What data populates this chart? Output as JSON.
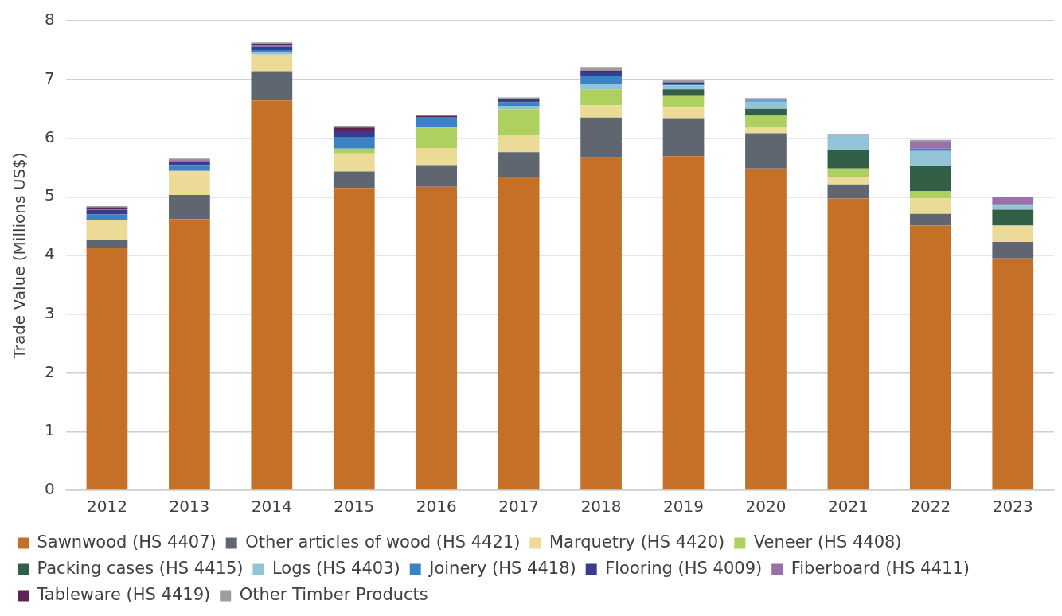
{
  "chart_data": {
    "type": "bar",
    "stacked": true,
    "ylabel": "Trade Value (Millions US$)",
    "categories": [
      "2012",
      "2013",
      "2014",
      "2015",
      "2016",
      "2017",
      "2018",
      "2019",
      "2020",
      "2021",
      "2022",
      "2023"
    ],
    "ylim": [
      0,
      8
    ],
    "yticks": [
      0,
      1,
      2,
      3,
      4,
      5,
      6,
      7,
      8
    ],
    "grid": "y",
    "legend": "bottom",
    "series": [
      {
        "name": "Sawnwood (HS 4407)",
        "color": "#c47127",
        "values": [
          4.13,
          4.62,
          6.64,
          5.15,
          5.17,
          5.33,
          5.67,
          5.69,
          5.48,
          4.97,
          4.51,
          3.95
        ]
      },
      {
        "name": "Other articles of wood (HS 4421)",
        "color": "#5f6670",
        "values": [
          0.14,
          0.41,
          0.5,
          0.28,
          0.37,
          0.43,
          0.68,
          0.65,
          0.6,
          0.24,
          0.2,
          0.28
        ]
      },
      {
        "name": "Marquetry (HS 4420)",
        "color": "#ecdb97",
        "values": [
          0.33,
          0.41,
          0.28,
          0.31,
          0.29,
          0.3,
          0.21,
          0.18,
          0.11,
          0.12,
          0.26,
          0.28
        ]
      },
      {
        "name": "Veneer (HS 4408)",
        "color": "#aed05f",
        "values": [
          0,
          0,
          0,
          0.08,
          0.35,
          0.43,
          0.27,
          0.21,
          0.19,
          0.15,
          0.13,
          0
        ]
      },
      {
        "name": "Packing cases (HS 4415)",
        "color": "#325f46",
        "values": [
          0,
          0,
          0,
          0,
          0,
          0,
          0,
          0.1,
          0.12,
          0.31,
          0.42,
          0.27
        ]
      },
      {
        "name": "Logs (HS 4403)",
        "color": "#93c3d6",
        "values": [
          0.01,
          0,
          0.05,
          0,
          0,
          0.06,
          0.08,
          0.07,
          0.12,
          0.26,
          0.26,
          0.07
        ]
      },
      {
        "name": "Joinery (HS 4418)",
        "color": "#3a82c4",
        "values": [
          0.09,
          0.1,
          0.03,
          0.2,
          0.18,
          0.06,
          0.15,
          0.02,
          0.02,
          0,
          0.04,
          0.02
        ]
      },
      {
        "name": "Flooring (HS 4009)",
        "color": "#373c8c",
        "values": [
          0.08,
          0.06,
          0.06,
          0.1,
          0,
          0.06,
          0.07,
          0.01,
          0,
          0,
          0,
          0
        ]
      },
      {
        "name": "Fiberboard (HS 4411)",
        "color": "#9b6fa7",
        "values": [
          0.02,
          0.02,
          0.03,
          0,
          0,
          0,
          0,
          0,
          0,
          0,
          0.13,
          0.13
        ]
      },
      {
        "name": "Tableware (HS 4419)",
        "color": "#5e2453",
        "values": [
          0.02,
          0.01,
          0.02,
          0.06,
          0.02,
          0,
          0.02,
          0.02,
          0,
          0,
          0,
          0
        ]
      },
      {
        "name": "Other Timber Products",
        "color": "#9a9ea3",
        "values": [
          0.02,
          0.02,
          0.02,
          0.03,
          0.02,
          0.02,
          0.06,
          0.04,
          0.04,
          0.02,
          0.02,
          0
        ]
      }
    ]
  }
}
